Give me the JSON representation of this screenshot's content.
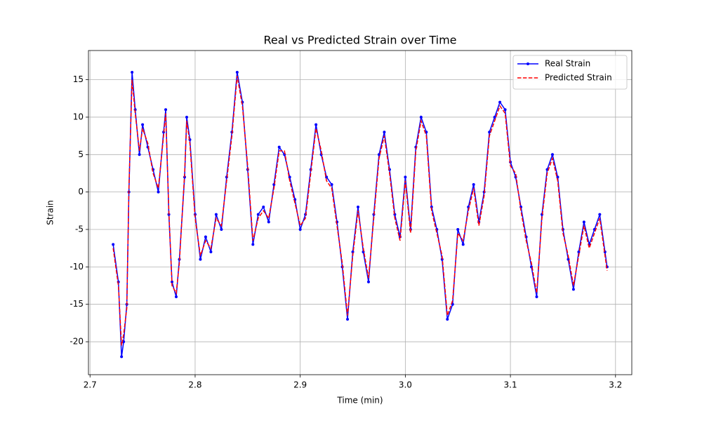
{
  "chart_data": {
    "type": "line",
    "title": "Real vs Predicted Strain over Time",
    "x_label": "Time (min)",
    "y_label": "Strain",
    "x": [
      2.722,
      2.727,
      2.73,
      2.732,
      2.735,
      2.737,
      2.74,
      2.743,
      2.747,
      2.75,
      2.755,
      2.76,
      2.765,
      2.77,
      2.772,
      2.775,
      2.778,
      2.782,
      2.785,
      2.79,
      2.792,
      2.795,
      2.8,
      2.805,
      2.81,
      2.815,
      2.82,
      2.825,
      2.83,
      2.835,
      2.84,
      2.845,
      2.85,
      2.855,
      2.86,
      2.865,
      2.87,
      2.875,
      2.88,
      2.885,
      2.89,
      2.895,
      2.9,
      2.905,
      2.91,
      2.915,
      2.92,
      2.925,
      2.93,
      2.935,
      2.94,
      2.945,
      2.95,
      2.955,
      2.96,
      2.965,
      2.97,
      2.975,
      2.98,
      2.985,
      2.99,
      2.995,
      3.0,
      3.005,
      3.01,
      3.015,
      3.02,
      3.025,
      3.03,
      3.035,
      3.04,
      3.045,
      3.05,
      3.055,
      3.06,
      3.065,
      3.07,
      3.075,
      3.08,
      3.085,
      3.09,
      3.095,
      3.1,
      3.105,
      3.11,
      3.115,
      3.12,
      3.125,
      3.13,
      3.135,
      3.14,
      3.145,
      3.15,
      3.155,
      3.16,
      3.165,
      3.17,
      3.175,
      3.18,
      3.185,
      3.19,
      3.192
    ],
    "series": [
      {
        "name": "Real Strain",
        "color": "#0000ff",
        "style": "solid",
        "markers": true,
        "values": [
          -7,
          -12,
          -22,
          -20,
          -15,
          0,
          16,
          11,
          5,
          9,
          6,
          3,
          0,
          8,
          11,
          -3,
          -12,
          -14,
          -9,
          2,
          10,
          7,
          -3,
          -9,
          -6,
          -8,
          -3,
          -5,
          2,
          8,
          16,
          12,
          3,
          -7,
          -3,
          -2,
          -4,
          1,
          6,
          5,
          2,
          -1,
          -5,
          -3,
          3,
          9,
          5,
          2,
          1,
          -4,
          -10,
          -17,
          -8,
          -2,
          -8,
          -12,
          -3,
          5,
          8,
          3,
          -3,
          -6,
          2,
          -5,
          6,
          10,
          8,
          -2,
          -5,
          -9,
          -17,
          -15,
          -5,
          -7,
          -2,
          1,
          -4,
          0,
          8,
          10,
          12,
          11,
          4,
          2,
          -2,
          -6,
          -10,
          -14,
          -3,
          3,
          5,
          2,
          -5,
          -9,
          -13,
          -8,
          -4,
          -7,
          -5,
          -3,
          -8,
          -10
        ]
      },
      {
        "name": "Predicted Strain",
        "color": "#ff0000",
        "style": "dashed",
        "markers": false,
        "values": [
          -7.5,
          -12.5,
          -20.5,
          -19,
          -15.5,
          0.5,
          15,
          10.5,
          5.5,
          8.5,
          6.5,
          2.5,
          0.5,
          7.5,
          10.5,
          -2.5,
          -12.5,
          -13.5,
          -9.5,
          2.5,
          9.5,
          6.5,
          -3.5,
          -8.5,
          -6.5,
          -7.5,
          -3.5,
          -4.5,
          1.5,
          7.5,
          15.5,
          11.5,
          3.5,
          -6.5,
          -3.5,
          -2.5,
          -3.5,
          0.5,
          5.5,
          5.5,
          1.5,
          -1.5,
          -4.5,
          -3.5,
          2.5,
          8.5,
          5.5,
          1.5,
          0.5,
          -4.5,
          -9.5,
          -16.5,
          -8.5,
          -2.5,
          -7.5,
          -11.5,
          -3.5,
          4.5,
          7.5,
          2.5,
          -3.5,
          -6.5,
          1.5,
          -5.5,
          5.5,
          9.5,
          7.5,
          -2.5,
          -5.5,
          -8.5,
          -16.5,
          -14.5,
          -5.5,
          -6.5,
          -2.5,
          0.5,
          -4.5,
          -0.5,
          7.5,
          9.5,
          11.5,
          10.5,
          3.5,
          2.5,
          -2.5,
          -6.5,
          -9.5,
          -13.5,
          -3.5,
          2.5,
          4.5,
          1.5,
          -5.5,
          -8.5,
          -12.5,
          -8.5,
          -4.5,
          -7.5,
          -5.5,
          -3.5,
          -8.5,
          -10.5
        ]
      }
    ],
    "xlim": [
      2.6985,
      3.2155
    ],
    "ylim": [
      -24.4,
      18.9
    ],
    "xticks": [
      2.7,
      2.8,
      2.9,
      {
        "value": 3,
        "label": "3.0"
      },
      3.1,
      3.2
    ],
    "yticks": [
      -20,
      -15,
      -10,
      -5,
      0,
      5,
      10,
      15
    ],
    "grid": true,
    "legend": "upper-right"
  }
}
